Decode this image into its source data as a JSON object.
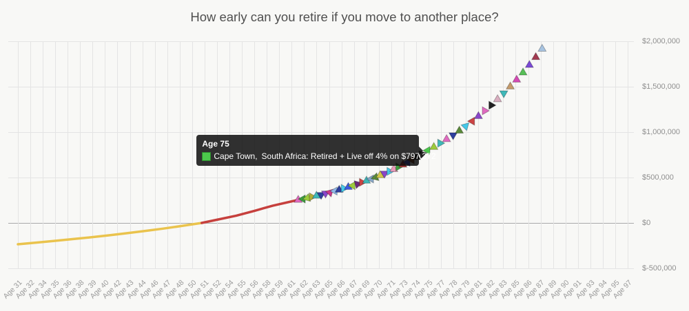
{
  "title": "How early can you retire if you move to another place?",
  "tooltip": {
    "title": "Age 75",
    "city": "Cape Town,",
    "rest": "South Africa: Retired + Live off 4% on $797,372",
    "swatch_color": "#4cc94c",
    "flag_icon": "south-africa-flag",
    "age": 75,
    "value": 797372
  },
  "colors": {
    "background": "#f8f8f6",
    "gridline": "#e4e4e4",
    "zero_line": "#a9a9a9",
    "title_text": "#4f4f4f",
    "tick_text": "#9a9a9a",
    "line_negative": "#eac34d",
    "line_positive": "#c6403d",
    "tooltip_bg": "rgba(10,10,10,0.84)"
  },
  "chart_data": {
    "type": "line+scatter",
    "title": "How early can you retire if you move to another place?",
    "grid": "on",
    "legend": "none",
    "x_axis": {
      "kind": "age",
      "age_min": 30,
      "age_max": 97,
      "tick_labels": [
        "Age 31",
        "Age 32",
        "Age 34",
        "Age 35",
        "Age 36",
        "Age 38",
        "Age 39",
        "Age 40",
        "Age 42",
        "Age 43",
        "Age 44",
        "Age 46",
        "Age 47",
        "Age 48",
        "Age 50",
        "Age 51",
        "Age 52",
        "Age 54",
        "Age 55",
        "Age 56",
        "Age 58",
        "Age 59",
        "Age 61",
        "Age 62",
        "Age 63",
        "Age 65",
        "Age 66",
        "Age 67",
        "Age 69",
        "Age 70",
        "Age 71",
        "Age 73",
        "Age 74",
        "Age 75",
        "Age 77",
        "Age 78",
        "Age 79",
        "Age 81",
        "Age 82",
        "Age 83",
        "Age 85",
        "Age 86",
        "Age 87",
        "Age 89",
        "Age 90",
        "Age 91",
        "Age 93",
        "Age 94",
        "Age 95",
        "Age 97"
      ]
    },
    "y_axis": {
      "tick_labels": [
        "$2,000,000",
        "$1,500,000",
        "$1,000,000",
        "$500,000",
        "$0",
        "$-500,000"
      ],
      "tick_values": [
        2000000,
        1500000,
        1000000,
        500000,
        0,
        -500000
      ],
      "ylim": [
        -500000,
        2000000
      ]
    },
    "series": [
      {
        "name": "net-worth-negative",
        "type": "line",
        "color": "#eac34d",
        "points": [
          [
            30,
            -235000
          ],
          [
            32,
            -217000
          ],
          [
            34,
            -198000
          ],
          [
            36,
            -178000
          ],
          [
            38,
            -158000
          ],
          [
            40,
            -136000
          ],
          [
            42,
            -113000
          ],
          [
            44,
            -88000
          ],
          [
            46,
            -62000
          ],
          [
            48,
            -33000
          ],
          [
            50.2,
            0
          ]
        ]
      },
      {
        "name": "net-worth-positive",
        "type": "line",
        "color": "#c6403d",
        "points": [
          [
            50.2,
            0
          ],
          [
            52,
            38000
          ],
          [
            54,
            80000
          ],
          [
            56,
            133000
          ],
          [
            58,
            190000
          ],
          [
            60.8,
            254000
          ]
        ]
      },
      {
        "name": "retirement-options",
        "type": "scatter",
        "marker": "triangle",
        "points": [
          {
            "age": 60.8,
            "value": 254000,
            "color": "#e06bc0",
            "rot": 0
          },
          {
            "age": 61.3,
            "value": 264000,
            "color": "#3f9e3f",
            "rot": -90
          },
          {
            "age": 61.8,
            "value": 275000,
            "color": "#9ccb3b",
            "rot": 15
          },
          {
            "age": 62.3,
            "value": 287000,
            "color": "#b3ae38",
            "rot": 90
          },
          {
            "age": 62.8,
            "value": 299000,
            "color": "#3fb8b8",
            "rot": 0
          },
          {
            "age": 63.3,
            "value": 311000,
            "color": "#2e3f9e",
            "rot": -60
          },
          {
            "age": 63.8,
            "value": 324000,
            "color": "#8a46c9",
            "rot": 180
          },
          {
            "age": 64.3,
            "value": 337000,
            "color": "#c9398a",
            "rot": 45
          },
          {
            "age": 64.8,
            "value": 351000,
            "color": "#8fb8e8",
            "rot": -90
          },
          {
            "age": 65.3,
            "value": 365000,
            "color": "#2e3f9e",
            "rot": 0
          },
          {
            "age": 65.8,
            "value": 380000,
            "color": "#46c8e8",
            "rot": 90
          },
          {
            "age": 66.3,
            "value": 396000,
            "color": "#3f5ae0",
            "rot": 0
          },
          {
            "age": 66.8,
            "value": 412000,
            "color": "#9ccb3b",
            "rot": 30
          },
          {
            "age": 67.3,
            "value": 429000,
            "color": "#6a2a7a",
            "rot": -45
          },
          {
            "age": 67.8,
            "value": 447000,
            "color": "#cc4444",
            "rot": 90
          },
          {
            "age": 68.3,
            "value": 465000,
            "color": "#3fb8b8",
            "rot": 0
          },
          {
            "age": 68.8,
            "value": 484000,
            "color": "#88a8c8",
            "rot": -90
          },
          {
            "age": 69.3,
            "value": 504000,
            "color": "#5a8a3a",
            "rot": 15
          },
          {
            "age": 69.8,
            "value": 525000,
            "color": "#d4c84a",
            "rot": 0
          },
          {
            "age": 70.3,
            "value": 546000,
            "color": "#8a46c9",
            "rot": 60
          },
          {
            "age": 70.8,
            "value": 569000,
            "color": "#46c8e8",
            "rot": -30
          },
          {
            "age": 71.3,
            "value": 592000,
            "color": "#e898b8",
            "rot": 0
          },
          {
            "age": 71.8,
            "value": 617000,
            "color": "#3f9e3f",
            "rot": 90
          },
          {
            "age": 72.3,
            "value": 642000,
            "color": "#a83a3a",
            "rot": 0
          },
          {
            "age": 72.8,
            "value": 668000,
            "color": "#3f5ae0",
            "rot": -90
          },
          {
            "age": 73.3,
            "value": 696000,
            "color": "#884422",
            "rot": 30
          },
          {
            "age": 73.8,
            "value": 724000,
            "color": "#222222",
            "rot": 0
          },
          {
            "age": 74.4,
            "value": 759000,
            "color": "#222222",
            "rot": -45
          },
          {
            "age": 75.0,
            "value": 797372,
            "color": "#4cc94c",
            "rot": -90
          },
          {
            "age": 75.7,
            "value": 836000,
            "color": "#9ccb3b",
            "rot": 0
          },
          {
            "age": 76.4,
            "value": 878000,
            "color": "#3fb8b8",
            "rot": 90
          },
          {
            "age": 77.1,
            "value": 922000,
            "color": "#e06bc0",
            "rot": 0
          },
          {
            "age": 77.8,
            "value": 968000,
            "color": "#2e3f9e",
            "rot": -60
          },
          {
            "age": 78.5,
            "value": 1016000,
            "color": "#5a8a3a",
            "rot": 0
          },
          {
            "age": 79.2,
            "value": 1067000,
            "color": "#46c8e8",
            "rot": 45
          },
          {
            "age": 79.9,
            "value": 1120000,
            "color": "#cc4444",
            "rot": -90
          },
          {
            "age": 80.6,
            "value": 1176000,
            "color": "#8a46c9",
            "rot": 0
          },
          {
            "age": 81.3,
            "value": 1235000,
            "color": "#e06bc0",
            "rot": 90
          },
          {
            "age": 82.0,
            "value": 1297000,
            "color": "#222222",
            "rot": -30
          },
          {
            "age": 82.7,
            "value": 1362000,
            "color": "#d9aec0",
            "rot": 0
          },
          {
            "age": 83.4,
            "value": 1430000,
            "color": "#3fb8b8",
            "rot": 60
          },
          {
            "age": 84.1,
            "value": 1502000,
            "color": "#c49a6a",
            "rot": 0
          },
          {
            "age": 84.8,
            "value": 1577000,
            "color": "#d44ab4",
            "rot": 0
          },
          {
            "age": 85.5,
            "value": 1656000,
            "color": "#57bf57",
            "rot": 0
          },
          {
            "age": 86.2,
            "value": 1739000,
            "color": "#7a4ad4",
            "rot": 0
          },
          {
            "age": 86.9,
            "value": 1826000,
            "color": "#a23a50",
            "rot": 0
          },
          {
            "age": 87.6,
            "value": 1917000,
            "color": "#a7c3e0",
            "rot": 0
          }
        ]
      }
    ]
  }
}
